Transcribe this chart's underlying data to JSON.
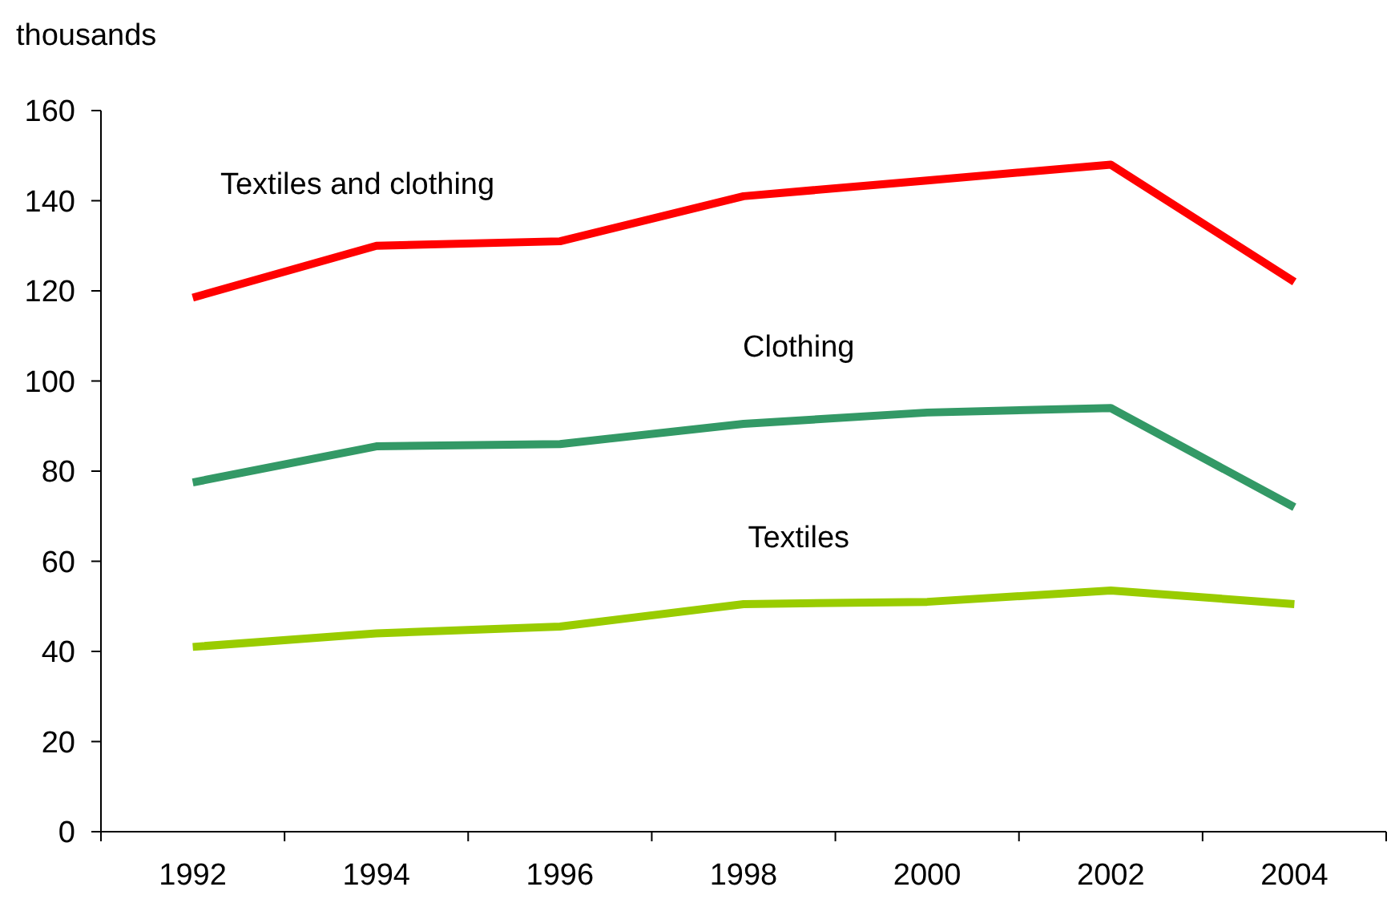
{
  "chart_data": {
    "type": "line",
    "ylabel": "thousands",
    "categories": [
      "1992",
      "1994",
      "1996",
      "1998",
      "2000",
      "2002",
      "2004"
    ],
    "series": [
      {
        "name": "Textiles and clothing",
        "color": "#ff0000",
        "values": [
          118.5,
          130,
          131,
          141,
          144.5,
          148,
          122
        ]
      },
      {
        "name": "Clothing",
        "color": "#339966",
        "values": [
          77.5,
          85.5,
          86,
          90.5,
          93,
          94,
          72
        ]
      },
      {
        "name": "Textiles",
        "color": "#99cc00",
        "values": [
          41,
          44,
          45.5,
          50.5,
          51,
          53.5,
          50.5
        ]
      }
    ],
    "ylim": [
      0,
      160
    ],
    "yticks": [
      0,
      20,
      40,
      60,
      80,
      100,
      120,
      140,
      160
    ],
    "grid": false,
    "marker": "none",
    "line_style": "solid"
  }
}
